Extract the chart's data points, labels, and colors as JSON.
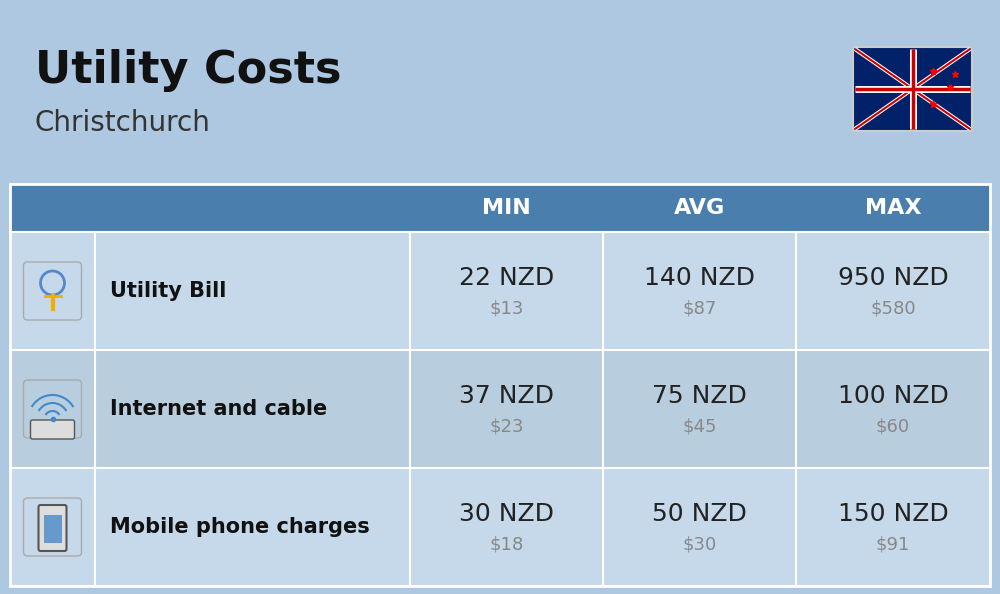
{
  "title": "Utility Costs",
  "subtitle": "Christchurch",
  "bg_color": "#adc8e0",
  "header_bg_color": "#4a7fad",
  "row_bg_color_light": "#c5d9ea",
  "row_bg_color_dark": "#b8cede",
  "table_border_color": "#ffffff",
  "header_text_color": "#ffffff",
  "header_labels": [
    "",
    "",
    "MIN",
    "AVG",
    "MAX"
  ],
  "rows": [
    {
      "icon_label": "utility",
      "name": "Utility Bill",
      "min_nzd": "22 NZD",
      "min_usd": "$13",
      "avg_nzd": "140 NZD",
      "avg_usd": "$87",
      "max_nzd": "950 NZD",
      "max_usd": "$580"
    },
    {
      "icon_label": "internet",
      "name": "Internet and cable",
      "min_nzd": "37 NZD",
      "min_usd": "$23",
      "avg_nzd": "75 NZD",
      "avg_usd": "$45",
      "max_nzd": "100 NZD",
      "max_usd": "$60"
    },
    {
      "icon_label": "mobile",
      "name": "Mobile phone charges",
      "min_nzd": "30 NZD",
      "min_usd": "$18",
      "avg_nzd": "50 NZD",
      "avg_usd": "$30",
      "max_nzd": "150 NZD",
      "max_usd": "$91"
    }
  ],
  "nzd_fontsize": 18,
  "usd_fontsize": 13,
  "name_fontsize": 15,
  "header_fontsize": 16,
  "title_fontsize": 32,
  "subtitle_fontsize": 20,
  "usd_color": "#888888",
  "nzd_color": "#222222",
  "name_color": "#111111"
}
